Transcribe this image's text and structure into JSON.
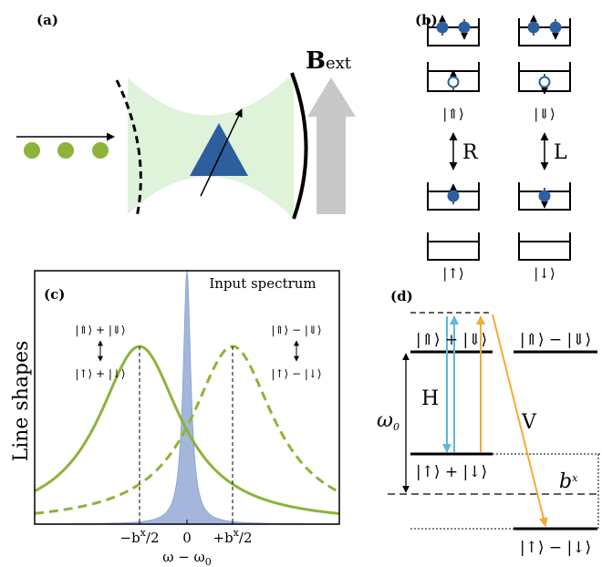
{
  "panel_a": {
    "label": "(a)",
    "field": {
      "base": "B",
      "sub": "ext"
    }
  },
  "panel_b": {
    "label": "(b)",
    "columns": [
      {
        "upper_state": "|⇑⟩",
        "transition": "R",
        "lower_state": "|↑⟩"
      },
      {
        "upper_state": "|⇓⟩",
        "transition": "L",
        "lower_state": "|↓⟩"
      }
    ]
  },
  "panel_c": {
    "label": "(c)",
    "legend": "Input spectrum",
    "y_label": "Line shapes",
    "x_label": {
      "base": "ω − ω",
      "sub": "0"
    },
    "ticks": [
      {
        "base": "−b",
        "sup": "x",
        "rest": "/2"
      },
      {
        "base": "0"
      },
      {
        "base": "+b",
        "sup": "x",
        "rest": "/2"
      }
    ],
    "left_note": {
      "upper": "|⇑⟩ + |⇓⟩",
      "lower": "|↑⟩ + |↓⟩"
    },
    "right_note": {
      "upper": "|⇑⟩ − |⇓⟩",
      "lower": "|↑⟩ − |↓⟩"
    }
  },
  "panel_d": {
    "label": "(d)",
    "levels": [
      "|⇑⟩ + |⇓⟩",
      "|⇑⟩ − |⇓⟩",
      "|↑⟩ + |↓⟩",
      "|↑⟩ − |↓⟩"
    ],
    "h": "H",
    "v": "V",
    "omega": {
      "base": "ω",
      "sub": "0"
    },
    "split": {
      "base": "b",
      "sup": "x"
    }
  }
}
